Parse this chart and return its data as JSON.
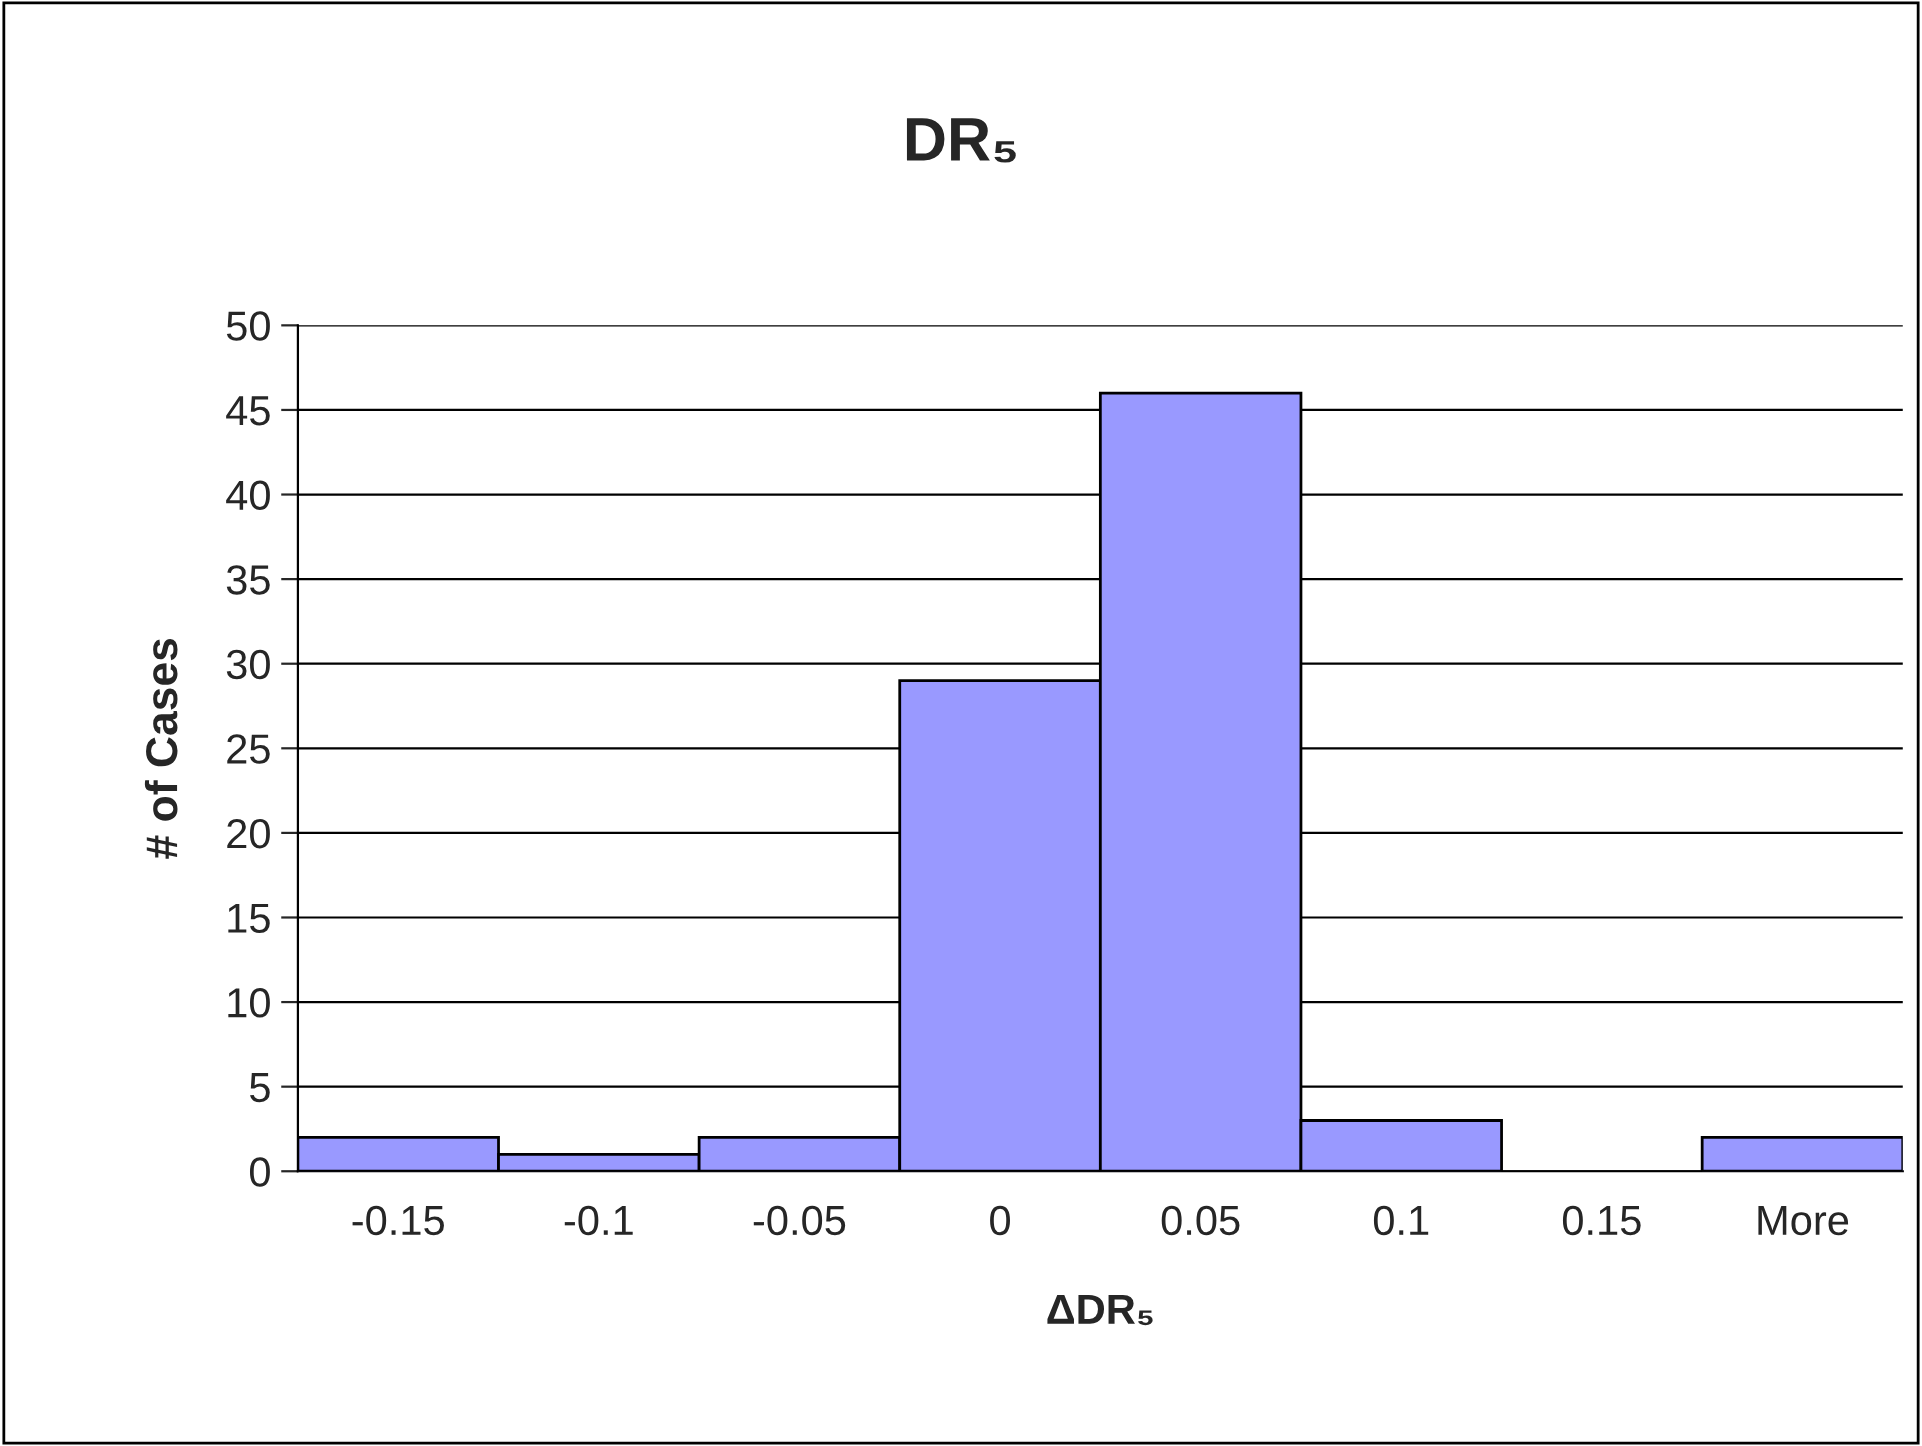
{
  "chart_data": {
    "type": "bar",
    "title": "DR₅",
    "xlabel": "ΔDR₅",
    "ylabel": "# of Cases",
    "categories": [
      "-0.15",
      "-0.1",
      "-0.05",
      "0",
      "0.05",
      "0.1",
      "0.15",
      "More"
    ],
    "values": [
      2,
      1,
      2,
      29,
      46,
      3,
      0,
      2
    ],
    "color": "#9999ff",
    "ylim": [
      0,
      50
    ],
    "yticks": [
      0,
      5,
      10,
      15,
      20,
      25,
      30,
      35,
      40,
      45,
      50
    ],
    "grid": "y",
    "legend": false
  }
}
